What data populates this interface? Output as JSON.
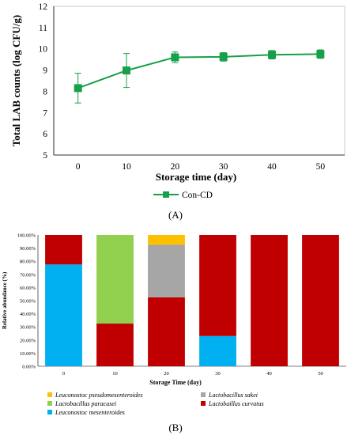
{
  "chart_data": [
    {
      "type": "line",
      "panel_label": "(A)",
      "xlabel": "Storage time (day)",
      "ylabel": "Total LAB counts  (log CFU/g)",
      "xlim": [
        -5,
        55
      ],
      "ylim": [
        5,
        12
      ],
      "x_ticks": [
        "0",
        "10",
        "20",
        "30",
        "40",
        "50"
      ],
      "y_ticks": [
        "5",
        "6",
        "7",
        "8",
        "9",
        "10",
        "11",
        "12"
      ],
      "grid": false,
      "legend_position": "bottom-center",
      "series": [
        {
          "name": "Con-CD",
          "color": "#16a04a",
          "marker": "square",
          "x": [
            0,
            10,
            20,
            30,
            40,
            50
          ],
          "y": [
            8.15,
            8.98,
            9.6,
            9.62,
            9.72,
            9.75
          ],
          "error": [
            0.7,
            0.8,
            0.25,
            0.2,
            0.2,
            0.2
          ]
        }
      ]
    },
    {
      "type": "bar",
      "stacked": true,
      "panel_label": "(B)",
      "xlabel": "Storage Time (day)",
      "ylabel": "Relative abundance (%)",
      "ylim": [
        0,
        100
      ],
      "categories": [
        "0",
        "10",
        "20",
        "30",
        "40",
        "50"
      ],
      "y_ticks": [
        "0.00%",
        "10.00%",
        "20.00%",
        "30.00%",
        "40.00%",
        "50.00%",
        "60.00%",
        "70.00%",
        "80.00%",
        "90.00%",
        "100.00%"
      ],
      "legend_position": "bottom",
      "series": [
        {
          "name": "Leuconostoc mesenteroides",
          "color": "#00b0f0",
          "values": [
            77.5,
            0,
            0,
            23,
            0,
            0
          ]
        },
        {
          "name": "Lactobaillus curvatus",
          "color": "#c00000",
          "values": [
            22.5,
            32.5,
            52.5,
            77,
            100,
            100
          ]
        },
        {
          "name": "Lactobacillus paracasei",
          "color": "#92d050",
          "values": [
            0,
            67.5,
            0,
            0,
            0,
            0
          ]
        },
        {
          "name": "Lactobacillus sakei",
          "color": "#a6a6a6",
          "values": [
            0,
            0,
            40,
            0,
            0,
            0
          ]
        },
        {
          "name": "Leuconostoc pseudomesenteroides",
          "color": "#ffc000",
          "values": [
            0,
            0,
            7.5,
            0,
            0,
            0
          ]
        }
      ],
      "legend_order": [
        "Leuconostoc pseudomesenteroides",
        "Lactobacillus sakei",
        "Lactobacillus paracasei",
        "Lactobaillus curvatus",
        "Leuconostoc mesenteroides"
      ]
    }
  ]
}
